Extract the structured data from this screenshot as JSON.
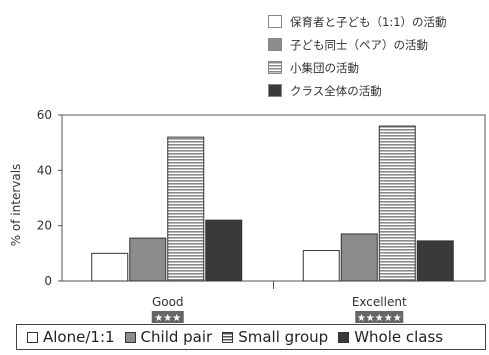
{
  "chart_data": {
    "type": "bar",
    "categories": [
      "Good",
      "Excellent"
    ],
    "category_ratings": [
      "★★★",
      "★★★★★"
    ],
    "series": [
      {
        "name": "Alone/1:1",
        "name_jp": "保育者と子ども（1:1）の活動",
        "values": [
          10,
          11
        ],
        "fill": "#ffffff"
      },
      {
        "name": "Child pair",
        "name_jp": "子ども同士（ペア）の活動",
        "values": [
          15.5,
          17
        ],
        "fill": "#8c8c8c"
      },
      {
        "name": "Small group",
        "name_jp": "小集団の活動",
        "values": [
          52,
          56
        ],
        "fill": "#b0b0b0",
        "pattern": "horizontal-stripes"
      },
      {
        "name": "Whole class",
        "name_jp": "クラス全体の活動",
        "values": [
          22,
          14.5
        ],
        "fill": "#3a3a3a"
      }
    ],
    "ylabel": "% of intervals",
    "ylim": [
      0,
      60
    ],
    "yticks": [
      0,
      20,
      40,
      60
    ],
    "grid": false,
    "legend_position": "top-right",
    "legend_bottom_position": "bottom"
  }
}
